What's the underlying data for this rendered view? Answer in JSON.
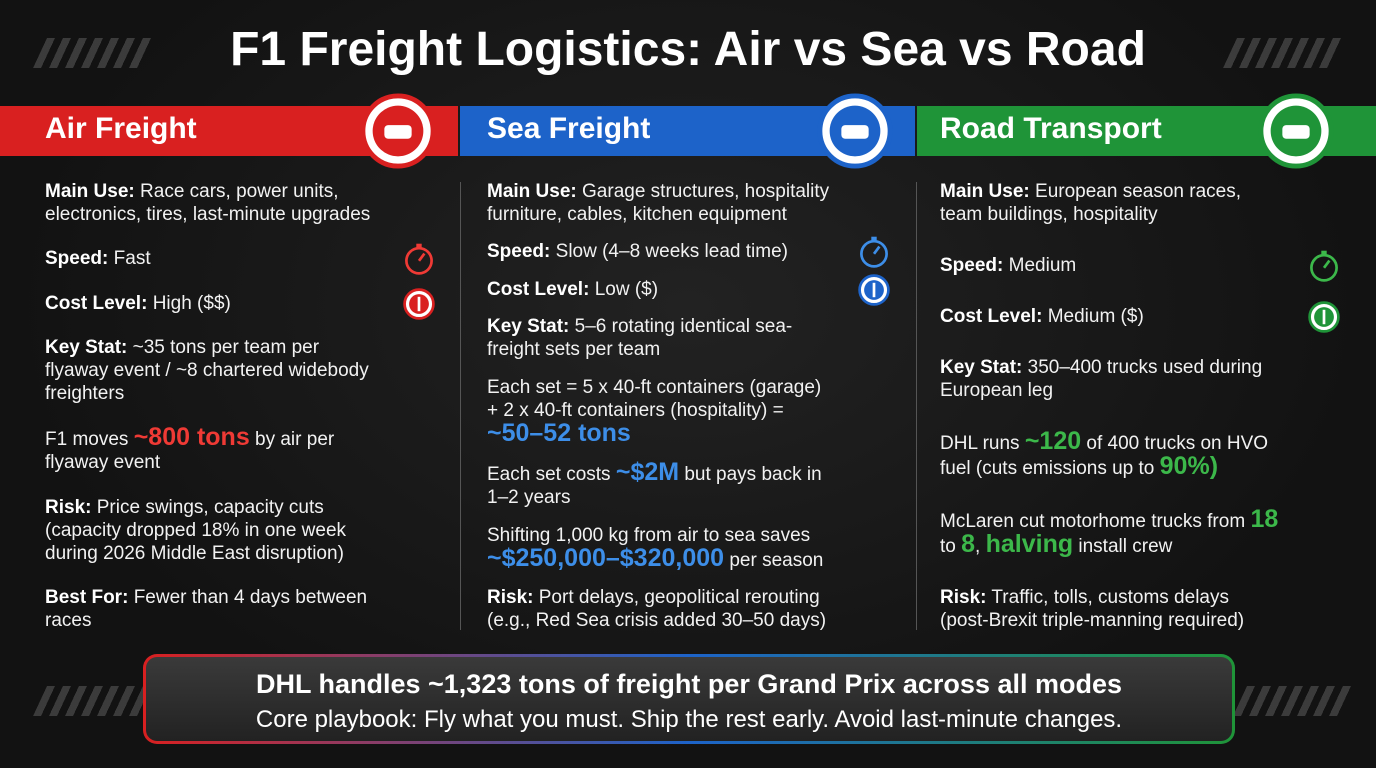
{
  "title": "F1 Freight Logistics: Air vs Sea vs Road",
  "columns": [
    {
      "header": "Air Freight",
      "color": "#d92020",
      "accent": "#ef3a35",
      "items": [
        {
          "label": "Main Use:",
          "text": "Race cars, power units, electronics, tires, last-minute upgrades"
        },
        {
          "label": "Speed:",
          "text": "Fast"
        },
        {
          "label": "Cost Level:",
          "text": "High ($$)"
        },
        {
          "label": "Key Stat:",
          "text": "~35 tons per team per flyaway event / ~8 chartered widebody freighters"
        },
        {
          "runs": [
            {
              "text": "F1 moves "
            },
            {
              "highlight": "~800 tons"
            },
            {
              "text": " by air per flyaway event"
            }
          ]
        },
        {
          "label": "Risk:",
          "text": "Price swings, capacity cuts (capacity dropped 18% in one week during 2026 Middle East disruption)"
        },
        {
          "label": "Best For:",
          "text": "Fewer than 4 days between races"
        }
      ]
    },
    {
      "header": "Sea Freight",
      "color": "#1d63c9",
      "accent": "#3d8ee8",
      "items": [
        {
          "label": "Main Use:",
          "text": "Garage structures, hospitality furniture, cables, kitchen equipment"
        },
        {
          "label": "Speed:",
          "text": "Slow (4–8 weeks lead time)"
        },
        {
          "label": "Cost Level:",
          "text": "Low ($)"
        },
        {
          "label": "Key Stat:",
          "text": "5–6 rotating identical sea-freight sets per team"
        },
        {
          "runs": [
            {
              "text": "Each set = 5 x 40-ft containers (garage) + 2 x 40-ft containers (hospitality) = "
            },
            {
              "highlight": "~50–52 tons"
            }
          ]
        },
        {
          "runs": [
            {
              "text": "Each set costs "
            },
            {
              "highlight": "~$2M"
            },
            {
              "text": " but pays back in 1–2 years"
            }
          ]
        },
        {
          "runs": [
            {
              "text": "Shifting 1,000 kg from air to sea saves "
            },
            {
              "highlight": "~$250,000–$320,000"
            },
            {
              "text": " per season"
            }
          ]
        },
        {
          "label": "Risk:",
          "text": "Port delays, geopolitical rerouting (e.g., Red Sea crisis added 30–50 days)"
        }
      ]
    },
    {
      "header": "Road Transport",
      "color": "#1f9438",
      "accent": "#3cb84a",
      "items": [
        {
          "label": "Main Use:",
          "text": "European season races, team buildings, hospitality"
        },
        {
          "label": "Speed:",
          "text": "Medium"
        },
        {
          "label": "Cost Level:",
          "text": "Medium ($)"
        },
        {
          "label": "Key Stat:",
          "text": "350–400 trucks used during European leg"
        },
        {
          "runs": [
            {
              "text": "DHL runs "
            },
            {
              "highlight": "~120"
            },
            {
              "text": " of 400 trucks on HVO fuel (cuts emissions up to "
            },
            {
              "highlight": "90%)"
            }
          ]
        },
        {
          "runs": [
            {
              "text": "McLaren cut motorhome trucks from "
            },
            {
              "highlight": "18"
            },
            {
              "text": " to "
            },
            {
              "highlight": "8"
            },
            {
              "text": ", "
            },
            {
              "highlight": "halving"
            },
            {
              "text": " install crew"
            }
          ]
        },
        {
          "label": "Risk:",
          "text": "Traffic, tolls, customs delays (post-Brexit triple-manning required)"
        }
      ]
    }
  ],
  "footer": {
    "line1": "DHL handles ~1,323 tons of freight per Grand Prix across all modes",
    "line2": "Core playbook: Fly what you must. Ship the rest early. Avoid last-minute changes."
  }
}
